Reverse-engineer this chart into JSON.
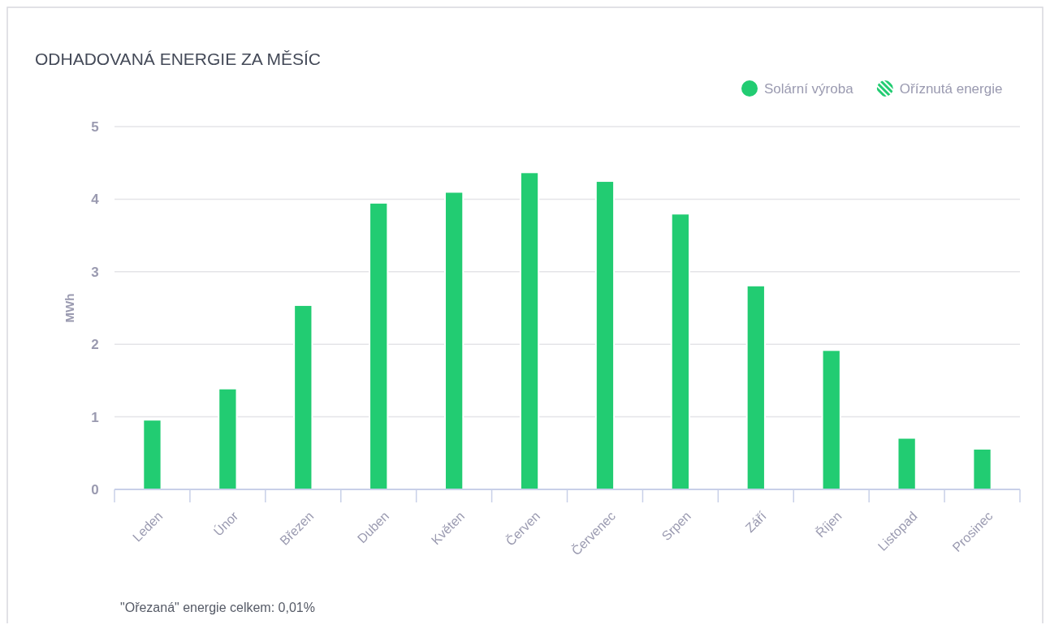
{
  "chart_data": {
    "type": "bar",
    "title": "ODHADOVANÁ ENERGIE ZA MĚSÍC",
    "ylabel": "MWh",
    "categories": [
      "Leden",
      "Únor",
      "Březen",
      "Duben",
      "Květen",
      "Červen",
      "Červenec",
      "Srpen",
      "Září",
      "Říjen",
      "Listopad",
      "Prosinec"
    ],
    "series": [
      {
        "name": "Solární výroba",
        "color": "#22cc72",
        "values": [
          0.96,
          1.39,
          2.54,
          3.95,
          4.1,
          4.37,
          4.25,
          3.8,
          2.81,
          1.92,
          0.71,
          0.56
        ]
      },
      {
        "name": "Oříznutá energie",
        "color": "#22cc72",
        "values": [
          0,
          0,
          0,
          0,
          0,
          0,
          0,
          0,
          0,
          0,
          0,
          0
        ]
      }
    ],
    "ylim": [
      0,
      5
    ],
    "yticks": [
      0,
      1,
      2,
      3,
      4,
      5
    ],
    "grid": "y",
    "legend": "top right",
    "annotations": [
      "\"Ořezaná\" energie celkem: 0,01%"
    ]
  }
}
